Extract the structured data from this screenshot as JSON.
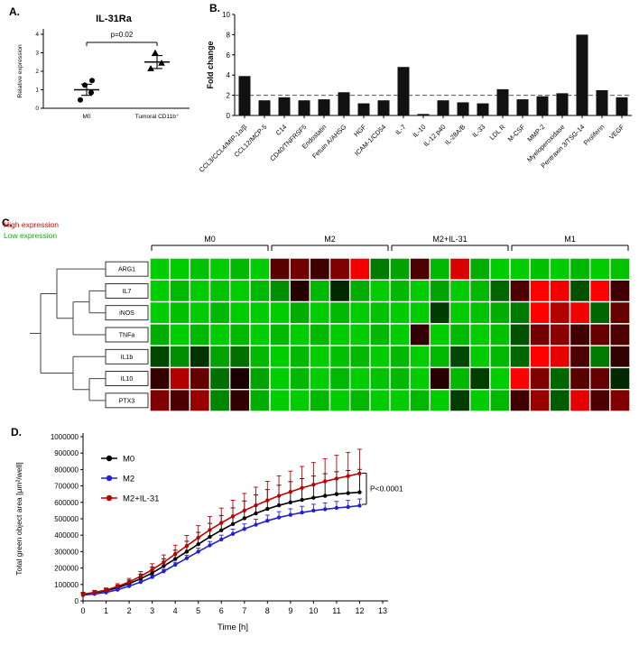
{
  "panels": {
    "a": "A.",
    "b": "B.",
    "c": "C.",
    "d": "D."
  },
  "chart_data": [
    {
      "id": "panel_a",
      "type": "scatter",
      "title": "IL-31Ra",
      "ylabel": "Relative expression",
      "ylim": [
        0,
        4
      ],
      "yticks": [
        0,
        1,
        2,
        3,
        4
      ],
      "annotation": "p=0.02",
      "groups": [
        {
          "label": "M0",
          "marker": "circle",
          "values": [
            0.45,
            0.85,
            1.25,
            1.5
          ],
          "mean": 1.0,
          "sem": 0.3
        },
        {
          "label": "Tumoral CD11b⁺",
          "marker": "triangle",
          "values": [
            2.15,
            2.45,
            3.0
          ],
          "mean": 2.5,
          "sem": 0.35
        }
      ]
    },
    {
      "id": "panel_b",
      "type": "bar",
      "ylabel": "Fold change",
      "ylim": [
        0,
        10
      ],
      "yticks": [
        0,
        2,
        4,
        6,
        8,
        10
      ],
      "threshold": 2,
      "categories": [
        "CCL3/CCL4/MIP-1α/β",
        "CCL12/MCP-5",
        "C14",
        "CD40/TNFRSF5",
        "Endostatin",
        "Fetuin A/AHSG",
        "HGF",
        "ICAM-1/CD54",
        "IL-7",
        "IL-10",
        "IL-12 p40",
        "IL-28A/B",
        "IL-33",
        "LDL R",
        "M-CSF",
        "MMP-2",
        "Myeloperoxidase",
        "Pentraxin 3/TSG-14",
        "Proliferin",
        "VEGF"
      ],
      "values": [
        3.9,
        1.5,
        1.8,
        1.5,
        1.6,
        2.3,
        1.2,
        1.5,
        4.8,
        0.15,
        1.5,
        1.3,
        1.2,
        2.6,
        1.6,
        1.9,
        2.2,
        8.0,
        2.5,
        1.8
      ]
    },
    {
      "id": "panel_c",
      "type": "heatmap",
      "legend_high": "High expression",
      "legend_low": "Low expression",
      "high_color": "#ee0000",
      "low_color": "#00bb00",
      "col_groups": [
        {
          "label": "M0",
          "cols": 6
        },
        {
          "label": "M2",
          "cols": 6
        },
        {
          "label": "M2+IL-31",
          "cols": 6
        },
        {
          "label": "M1",
          "cols": 6
        }
      ],
      "rows": [
        "ARG1",
        "IL7",
        "iNOS",
        "TNFa",
        "IL1b",
        "IL10",
        "PTX3"
      ],
      "dendrogram": [
        [
          "ARG1",
          [
            [
              "IL7",
              "iNOS"
            ],
            "TNFa"
          ]
        ],
        [
          "IL1b",
          [
            "IL10",
            "PTX3"
          ]
        ]
      ],
      "matrix": [
        [
          -1,
          -1,
          -0.95,
          -1,
          -0.9,
          -1,
          0.35,
          0.45,
          0.25,
          0.5,
          0.95,
          -0.6,
          -0.8,
          0.3,
          -0.9,
          0.85,
          -0.85,
          -1,
          -1,
          -0.95,
          -1,
          -0.9,
          -1,
          -0.95
        ],
        [
          -1,
          -0.9,
          -1,
          -0.95,
          -1,
          -0.9,
          -0.7,
          0.15,
          -0.9,
          -0.2,
          -0.85,
          -1,
          -0.9,
          -1,
          -0.8,
          -1,
          -0.9,
          -0.5,
          0.3,
          1,
          0.95,
          -0.4,
          1,
          0.25
        ],
        [
          -1,
          -0.95,
          -1,
          -0.9,
          -1,
          -1,
          -1,
          -0.85,
          -1,
          -0.9,
          -1,
          -0.95,
          -1,
          -1,
          -0.3,
          -1,
          -0.95,
          -0.85,
          -0.6,
          1,
          0.7,
          0.95,
          -0.5,
          0.4
        ],
        [
          -0.85,
          -1,
          -0.9,
          -1,
          -0.9,
          -1,
          -0.9,
          -1,
          -0.9,
          -1,
          -1,
          -0.9,
          -1,
          0.2,
          -1,
          -0.9,
          -1,
          -0.95,
          -0.4,
          0.45,
          0.55,
          0.25,
          0.4,
          0.3
        ],
        [
          -0.35,
          -0.7,
          -0.25,
          -0.8,
          -0.55,
          -0.9,
          -1,
          -0.9,
          -1,
          -0.95,
          -0.9,
          -1,
          -0.9,
          -1,
          -0.9,
          -0.35,
          -1,
          -0.9,
          -0.5,
          1,
          0.9,
          0.3,
          -0.6,
          0.2
        ],
        [
          0.2,
          0.7,
          0.4,
          -0.55,
          0.1,
          -0.8,
          -1,
          -0.9,
          -1,
          -0.9,
          -1,
          -0.95,
          -0.9,
          -1,
          0.15,
          -0.9,
          -0.3,
          -1,
          1,
          0.5,
          -0.5,
          0.35,
          0.4,
          -0.2
        ],
        [
          0.5,
          0.3,
          0.6,
          -0.65,
          0.2,
          -0.85,
          -1,
          -1,
          -0.9,
          -1,
          -0.9,
          -1,
          -1,
          -0.9,
          -1,
          -0.3,
          -1,
          -0.9,
          0.25,
          0.6,
          -0.45,
          0.9,
          0.3,
          0.5
        ]
      ]
    },
    {
      "id": "panel_d",
      "type": "line",
      "ylabel": "Total green object area [μm²/well]",
      "xlabel": "Time [h]",
      "ylim": [
        0,
        1000000
      ],
      "xlim": [
        0,
        13
      ],
      "yticks": [
        0,
        100000,
        200000,
        300000,
        400000,
        500000,
        600000,
        700000,
        800000,
        900000,
        1000000
      ],
      "xticks": [
        0,
        1,
        2,
        3,
        4,
        5,
        6,
        7,
        8,
        9,
        10,
        11,
        12,
        13
      ],
      "annotation": "P<0.0001",
      "x": [
        0,
        0.5,
        1,
        1.5,
        2,
        2.5,
        3,
        3.5,
        4,
        4.5,
        5,
        5.5,
        6,
        6.5,
        7,
        7.5,
        8,
        8.5,
        9,
        9.5,
        10,
        10.5,
        11,
        11.5,
        12
      ],
      "series": [
        {
          "name": "M0",
          "color": "#000000",
          "err_frac": 0.21,
          "values": [
            40000,
            50000,
            62000,
            80000,
            105000,
            135000,
            170000,
            212000,
            255000,
            300000,
            345000,
            390000,
            430000,
            468000,
            503000,
            533000,
            560000,
            582000,
            600000,
            615000,
            628000,
            640000,
            650000,
            656000,
            662000
          ]
        },
        {
          "name": "M2",
          "color": "#2222cc",
          "err_frac": 0.07,
          "values": [
            35000,
            42000,
            52000,
            68000,
            90000,
            115000,
            145000,
            180000,
            220000,
            260000,
            300000,
            338000,
            374000,
            408000,
            438000,
            464000,
            488000,
            508000,
            524000,
            538000,
            550000,
            558000,
            566000,
            572000,
            580000
          ]
        },
        {
          "name": "M2+IL-31",
          "color": "#bb0000",
          "err_frac": 0.19,
          "values": [
            40000,
            52000,
            66000,
            88000,
            115000,
            150000,
            190000,
            235000,
            285000,
            335000,
            385000,
            432000,
            475000,
            515000,
            550000,
            582000,
            612000,
            640000,
            664000,
            688000,
            708000,
            728000,
            745000,
            760000,
            776000
          ]
        }
      ]
    }
  ]
}
